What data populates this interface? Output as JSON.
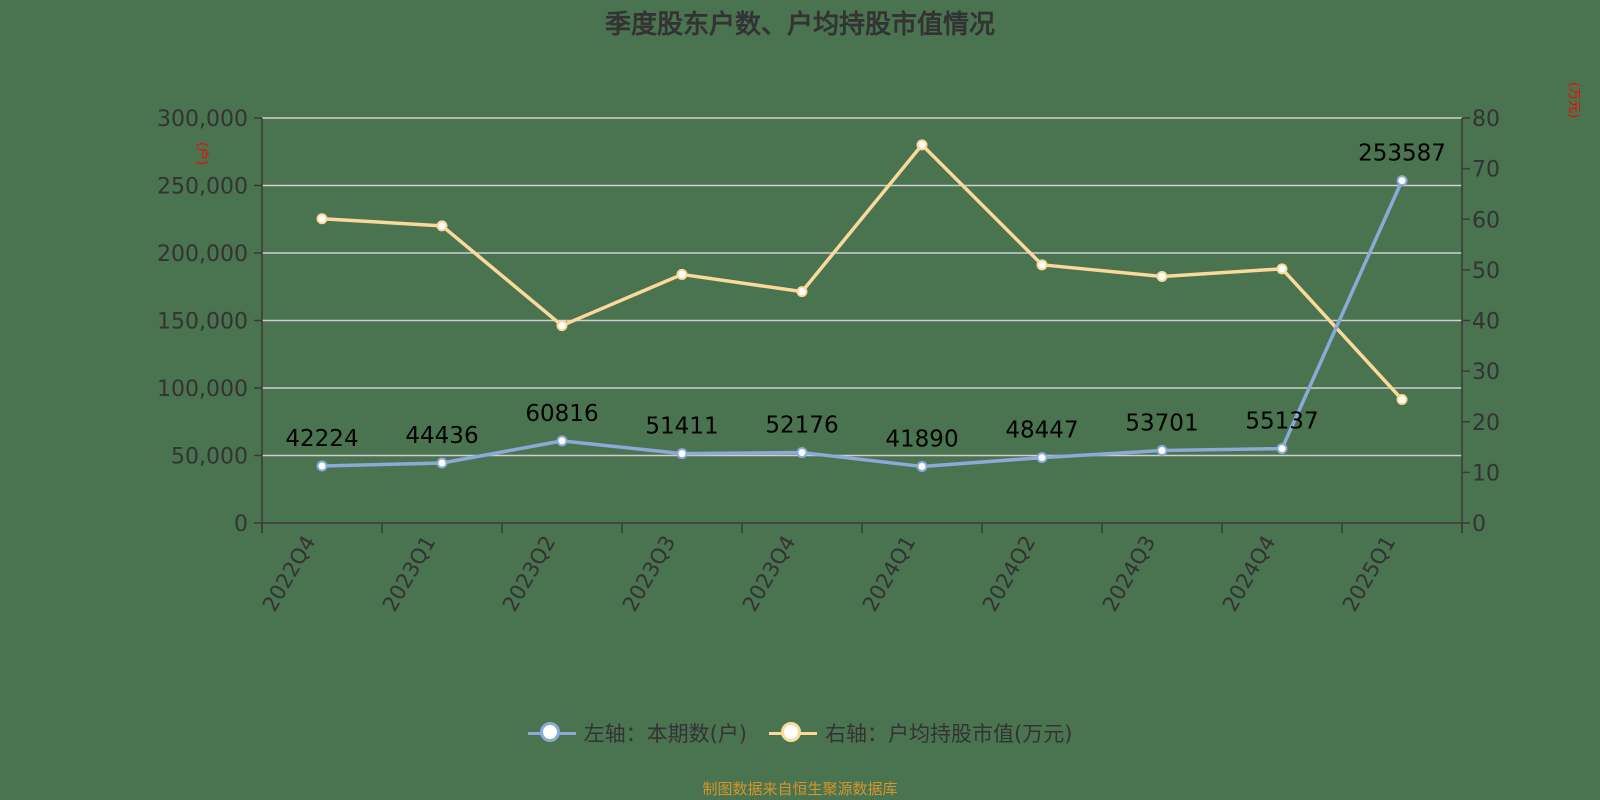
{
  "title": "季度股东户数、户均持股市值情况",
  "source_note": "制图数据来自恒生聚源数据库",
  "colors": {
    "background": "#4a7350",
    "axis": "#3a3a3a",
    "grid": "#d0d0d0",
    "left_series": "#8aaad8",
    "right_series": "#fbd99a",
    "unit_label": "#ff0000",
    "data_label": "#000000",
    "source": "#d4962a"
  },
  "legend": {
    "items": [
      {
        "label": "左轴：本期数(户)",
        "color": "#8aaad8"
      },
      {
        "label": "右轴：户均持股市值(万元)",
        "color": "#fbd99a"
      }
    ]
  },
  "chart_data": {
    "type": "line",
    "title": "季度股东户数、户均持股市值情况",
    "categories": [
      "2022Q4",
      "2023Q1",
      "2023Q2",
      "2023Q3",
      "2023Q4",
      "2024Q1",
      "2024Q2",
      "2024Q3",
      "2024Q4",
      "2025Q1"
    ],
    "series": [
      {
        "name": "左轴：本期数(户)",
        "axis": "left",
        "values": [
          42224,
          44436,
          60816,
          51411,
          52176,
          41890,
          48447,
          53701,
          55137,
          253587
        ],
        "data_labels": [
          "42224",
          "44436",
          "60816",
          "51411",
          "52176",
          "41890",
          "48447",
          "53701",
          "55137",
          "253587"
        ]
      },
      {
        "name": "右轴：户均持股市值(万元)",
        "axis": "right",
        "values": [
          60.1,
          58.7,
          39.0,
          49.1,
          45.7,
          74.7,
          51.0,
          48.7,
          50.2,
          24.4
        ]
      }
    ],
    "left_axis": {
      "unit": "(户)",
      "ylim": [
        0,
        300000
      ],
      "ticks": [
        0,
        50000,
        100000,
        150000,
        200000,
        250000,
        300000
      ],
      "tick_labels": [
        "0",
        "50,000",
        "100,000",
        "150,000",
        "200,000",
        "250,000",
        "300,000"
      ]
    },
    "right_axis": {
      "unit": "(万元)",
      "ylim": [
        0,
        80
      ],
      "ticks": [
        0,
        10,
        20,
        30,
        40,
        50,
        60,
        70,
        80
      ],
      "tick_labels": [
        "0",
        "10",
        "20",
        "30",
        "40",
        "50",
        "60",
        "70",
        "80"
      ]
    },
    "xlabel": "",
    "grid": true,
    "legend_position": "bottom"
  }
}
